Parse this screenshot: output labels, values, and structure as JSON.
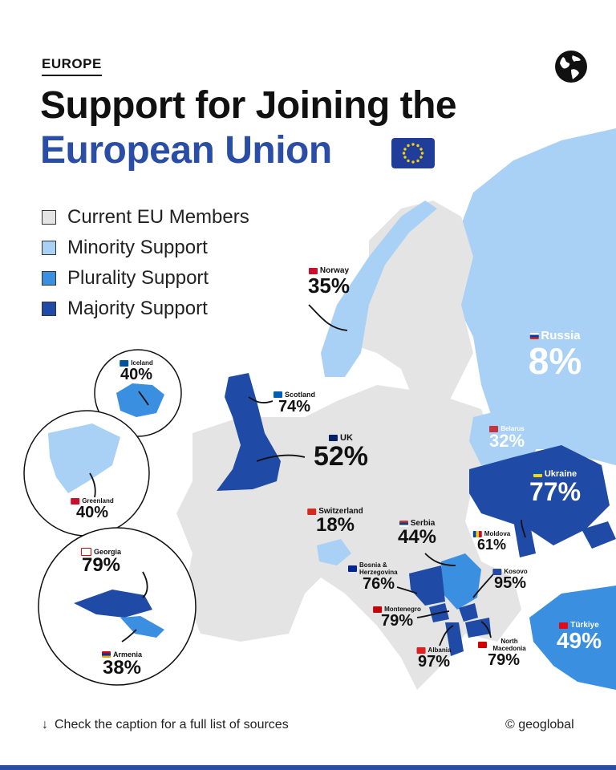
{
  "header": {
    "kicker": "EUROPE",
    "title_line1": "Support for Joining the",
    "title_line2": "European Union"
  },
  "legend": [
    {
      "label": "Current EU Members",
      "color": "#e4e4e4"
    },
    {
      "label": "Minority Support",
      "color": "#a9d1f5"
    },
    {
      "label": "Plurality Support",
      "color": "#3a8fe0"
    },
    {
      "label": "Majority Support",
      "color": "#1f4aa6"
    }
  ],
  "colors": {
    "eu": "#e4e4e4",
    "minority": "#a9d1f5",
    "plurality": "#3a8fe0",
    "majority": "#1f4aa6",
    "title_blue": "#2a4ea6",
    "ink": "#111111"
  },
  "countries": {
    "norway": {
      "name": "Norway",
      "value": "35%"
    },
    "russia": {
      "name": "Russia",
      "value": "8%"
    },
    "iceland": {
      "name": "Iceland",
      "value": "40%"
    },
    "scotland": {
      "name": "Scotland",
      "value": "74%"
    },
    "uk": {
      "name": "UK",
      "value": "52%"
    },
    "belarus": {
      "name": "Belarus",
      "value": "32%"
    },
    "greenland": {
      "name": "Greenland",
      "value": "40%"
    },
    "ukraine": {
      "name": "Ukraine",
      "value": "77%"
    },
    "switzerland": {
      "name": "Switzerland",
      "value": "18%"
    },
    "serbia": {
      "name": "Serbia",
      "value": "44%"
    },
    "moldova": {
      "name": "Moldova",
      "value": "61%"
    },
    "georgia": {
      "name": "Georgia",
      "value": "79%"
    },
    "bosnia": {
      "name": "Bosnia & Herzegovina",
      "value": "76%"
    },
    "kosovo": {
      "name": "Kosovo",
      "value": "95%"
    },
    "montenegro": {
      "name": "Montenegro",
      "value": "79%"
    },
    "turkiye": {
      "name": "Türkiye",
      "value": "49%"
    },
    "albania": {
      "name": "Albania",
      "value": "97%"
    },
    "north_macedonia": {
      "name": "North Macedonia",
      "value": "79%"
    },
    "armenia": {
      "name": "Armenia",
      "value": "38%"
    }
  },
  "footer": {
    "note": "Check the caption for a full list of sources",
    "arrow": "↓",
    "credit": "© geoglobal"
  },
  "icons": [
    "globe-icon",
    "eu-flag-icon",
    "arrow-down-icon"
  ]
}
